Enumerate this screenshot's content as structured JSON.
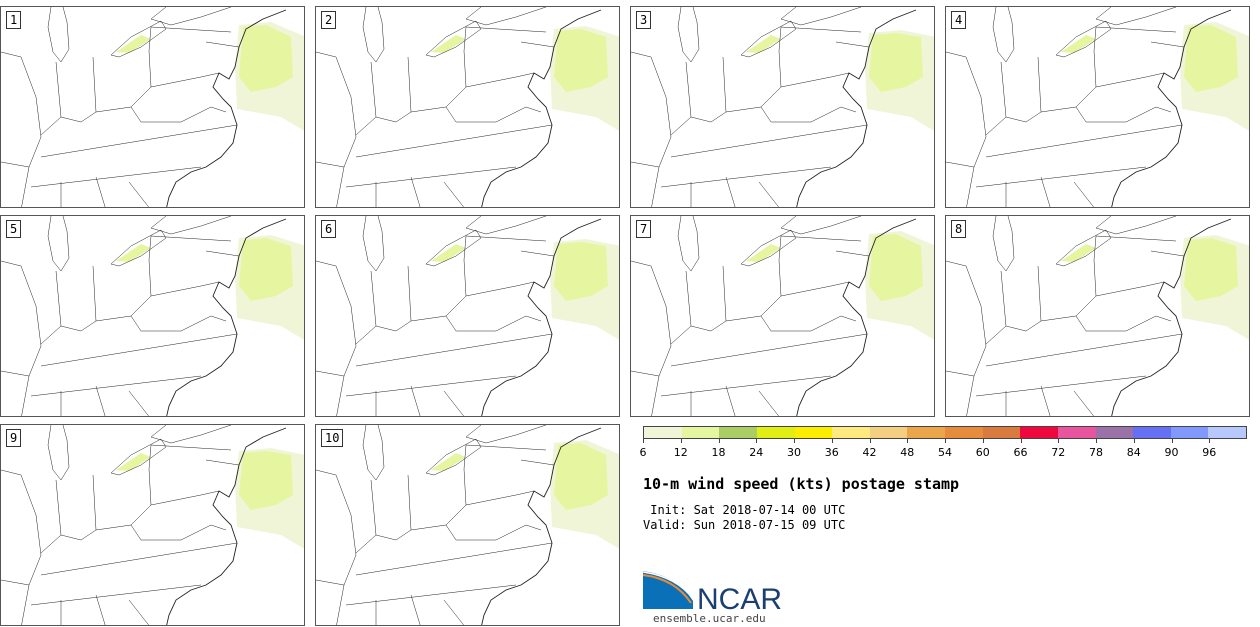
{
  "panels": [
    "1",
    "2",
    "3",
    "4",
    "5",
    "6",
    "7",
    "8",
    "9",
    "10"
  ],
  "colorbar": {
    "colors": [
      "#f0f5d8",
      "#e6f5a0",
      "#aacd64",
      "#e1ee14",
      "#fbec00",
      "#feea7e",
      "#f4cf82",
      "#eca64a",
      "#e68c3c",
      "#d97a3e",
      "#f0073e",
      "#e9549f",
      "#9a72a8",
      "#6670f4",
      "#8199fc",
      "#b6c8fc"
    ],
    "ticks": [
      "6",
      "12",
      "18",
      "24",
      "30",
      "36",
      "42",
      "48",
      "54",
      "60",
      "66",
      "72",
      "78",
      "84",
      "90",
      "96"
    ]
  },
  "title": "10-m wind speed (kts) postage stamp",
  "init": " Init: Sat 2018-07-14 00 UTC",
  "valid": "Valid: Sun 2018-07-15 09 UTC",
  "logo": {
    "text": "NCAR",
    "url": "ensemble.ucar.edu"
  }
}
